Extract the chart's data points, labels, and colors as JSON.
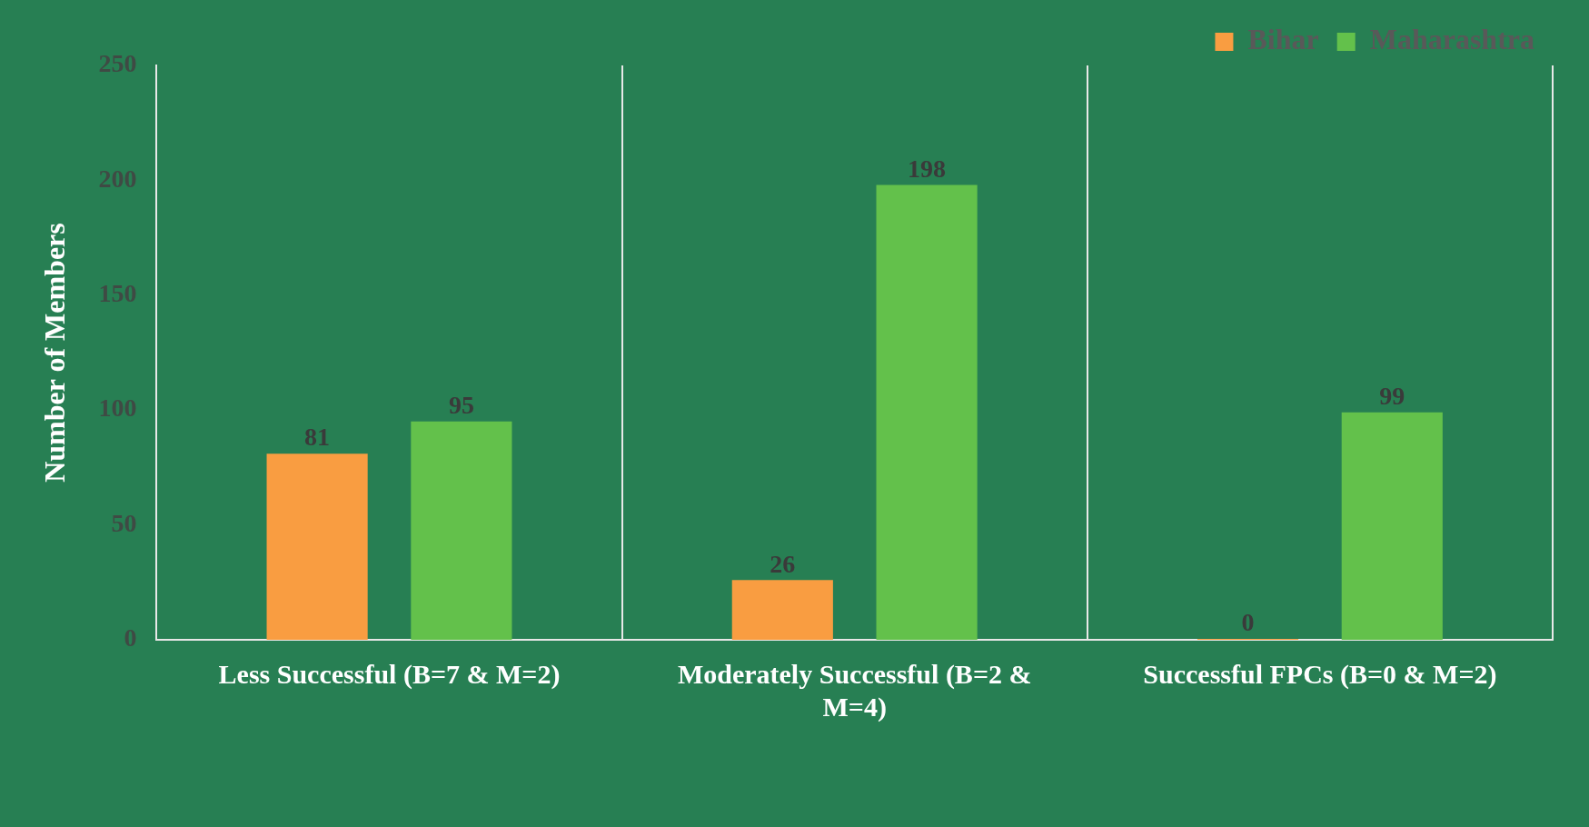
{
  "chart_data": {
    "type": "bar",
    "ylabel": "Number of Members",
    "categories": [
      "Less Successful (B=7 & M=2)",
      "Moderately Successful (B=2 & M=4)",
      "Successful FPCs (B=0 & M=2)"
    ],
    "series": [
      {
        "name": "Bihar",
        "color": "#f99d41",
        "values": [
          81,
          26,
          0
        ]
      },
      {
        "name": "Maharashtra",
        "color": "#63c14b",
        "values": [
          95,
          198,
          99
        ]
      }
    ],
    "ylim": [
      0,
      250
    ],
    "yticks": [
      0,
      50,
      100,
      150,
      200,
      250
    ],
    "grid": "x",
    "legend": "top right",
    "data_labels": true
  }
}
